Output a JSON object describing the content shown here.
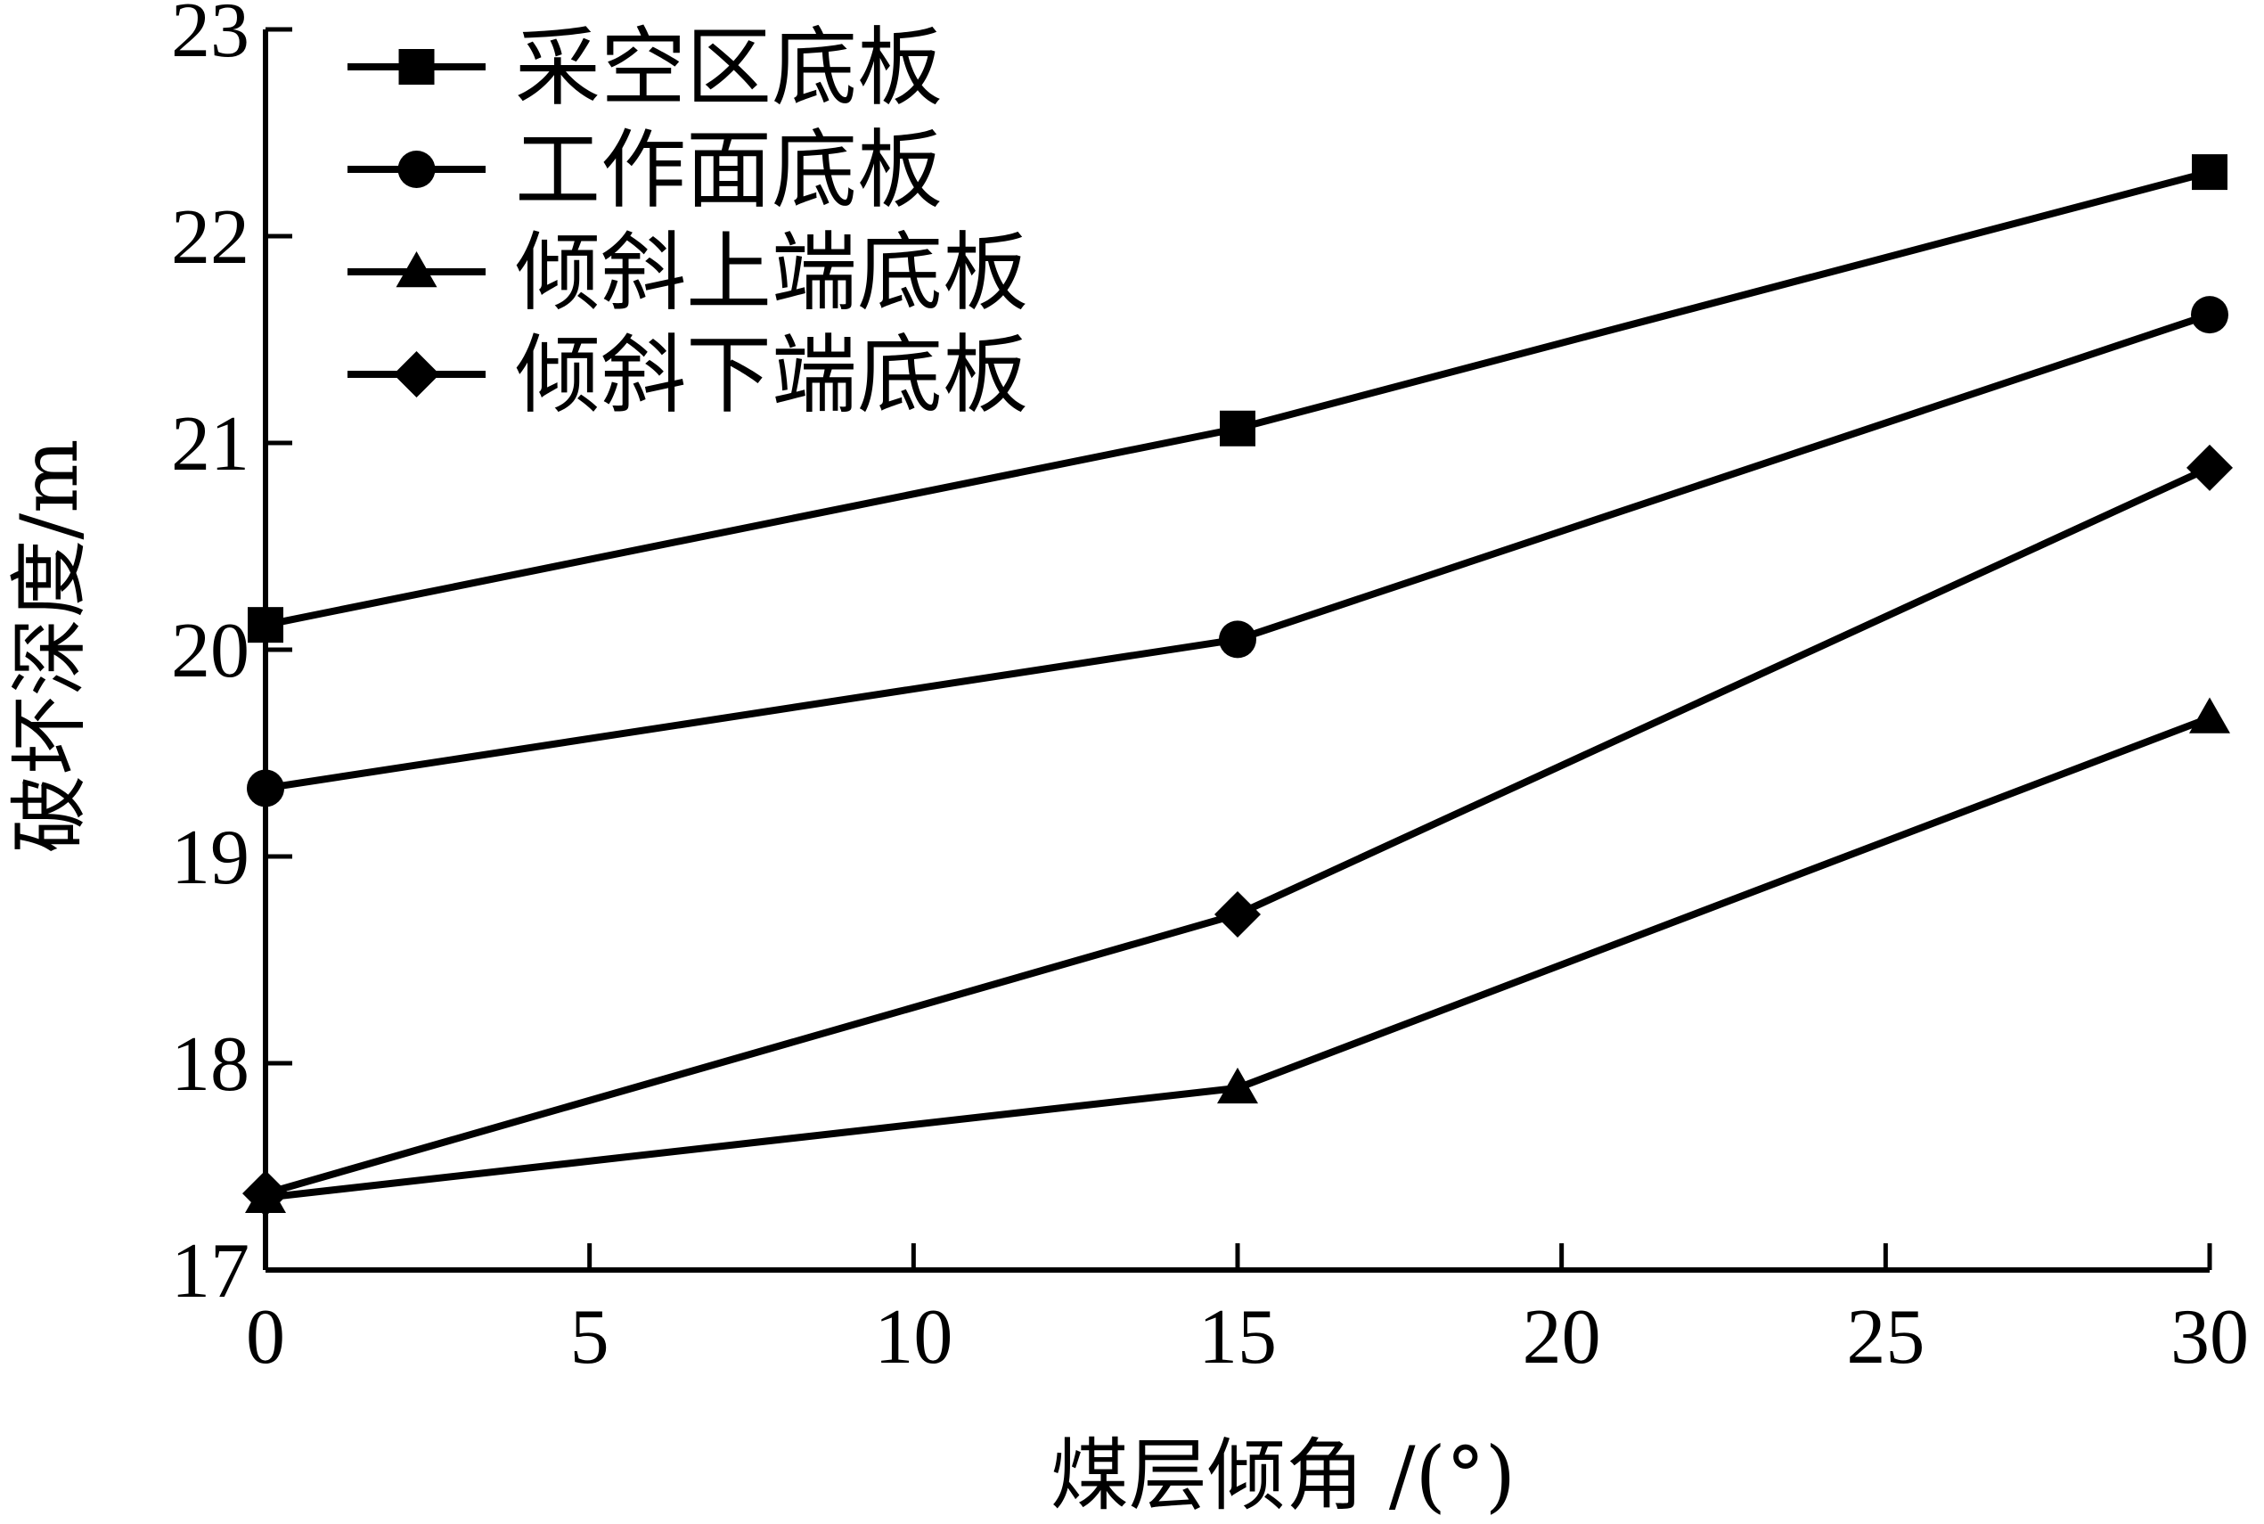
{
  "chart_data": {
    "type": "line",
    "xlabel": "煤层倾角 /(°)",
    "ylabel": "破坏深度/m",
    "xlim": [
      0,
      30
    ],
    "ylim": [
      17,
      23
    ],
    "xticks": [
      0,
      5,
      10,
      15,
      20,
      25,
      30
    ],
    "yticks": [
      17,
      18,
      19,
      20,
      21,
      22,
      23
    ],
    "x": [
      0,
      15,
      30
    ],
    "series": [
      {
        "name": "采空区底板",
        "marker": "square",
        "values": [
          20.12,
          21.07,
          22.31
        ]
      },
      {
        "name": "工作面底板",
        "marker": "circle",
        "values": [
          19.33,
          20.05,
          21.62
        ]
      },
      {
        "name": "倾斜上端底板",
        "marker": "triangle",
        "values": [
          17.35,
          17.88,
          19.67
        ]
      },
      {
        "name": "倾斜下端底板",
        "marker": "diamond",
        "values": [
          17.37,
          18.72,
          20.88
        ]
      }
    ],
    "legend_position": "top-left",
    "grid": false,
    "line_color": "#000000"
  }
}
